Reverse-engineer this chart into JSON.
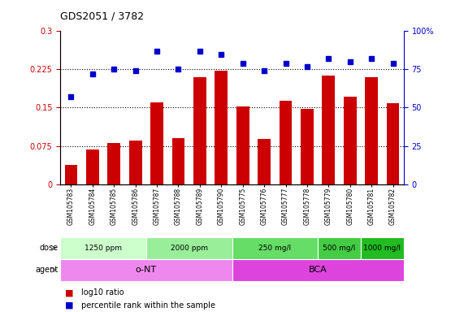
{
  "title": "GDS2051 / 3782",
  "samples": [
    "GSM105783",
    "GSM105784",
    "GSM105785",
    "GSM105786",
    "GSM105787",
    "GSM105788",
    "GSM105789",
    "GSM105790",
    "GSM105775",
    "GSM105776",
    "GSM105777",
    "GSM105778",
    "GSM105779",
    "GSM105780",
    "GSM105781",
    "GSM105782"
  ],
  "log10_ratio": [
    0.038,
    0.068,
    0.08,
    0.085,
    0.16,
    0.09,
    0.21,
    0.222,
    0.153,
    0.088,
    0.163,
    0.148,
    0.213,
    0.172,
    0.21,
    0.158
  ],
  "percentile_rank": [
    57,
    72,
    75,
    74,
    87,
    75,
    87,
    85,
    79,
    74,
    79,
    77,
    82,
    80,
    82,
    79
  ],
  "ylim_left": [
    0,
    0.3
  ],
  "ylim_right": [
    0,
    100
  ],
  "yticks_left": [
    0,
    0.075,
    0.15,
    0.225,
    0.3
  ],
  "ytick_labels_left": [
    "0",
    "0.075",
    "0.15",
    "0.225",
    "0.3"
  ],
  "yticks_right": [
    0,
    25,
    50,
    75,
    100
  ],
  "ytick_labels_right": [
    "0",
    "25",
    "50",
    "75",
    "100%"
  ],
  "hlines": [
    0.075,
    0.15,
    0.225
  ],
  "bar_color": "#CC0000",
  "dot_color": "#0000CC",
  "dose_groups": [
    {
      "label": "1250 ppm",
      "start": 0,
      "end": 4,
      "color": "#ccffcc"
    },
    {
      "label": "2000 ppm",
      "start": 4,
      "end": 8,
      "color": "#99ee99"
    },
    {
      "label": "250 mg/l",
      "start": 8,
      "end": 12,
      "color": "#66dd66"
    },
    {
      "label": "500 mg/l",
      "start": 12,
      "end": 14,
      "color": "#44cc44"
    },
    {
      "label": "1000 mg/l",
      "start": 14,
      "end": 16,
      "color": "#22bb22"
    }
  ],
  "agent_groups": [
    {
      "label": "o-NT",
      "start": 0,
      "end": 8,
      "color": "#ee88ee"
    },
    {
      "label": "BCA",
      "start": 8,
      "end": 16,
      "color": "#dd44dd"
    }
  ],
  "legend_bar_label": "log10 ratio",
  "legend_dot_label": "percentile rank within the sample",
  "background_color": "#ffffff",
  "tick_color_left": "#CC0000",
  "tick_color_right": "#0000CC"
}
